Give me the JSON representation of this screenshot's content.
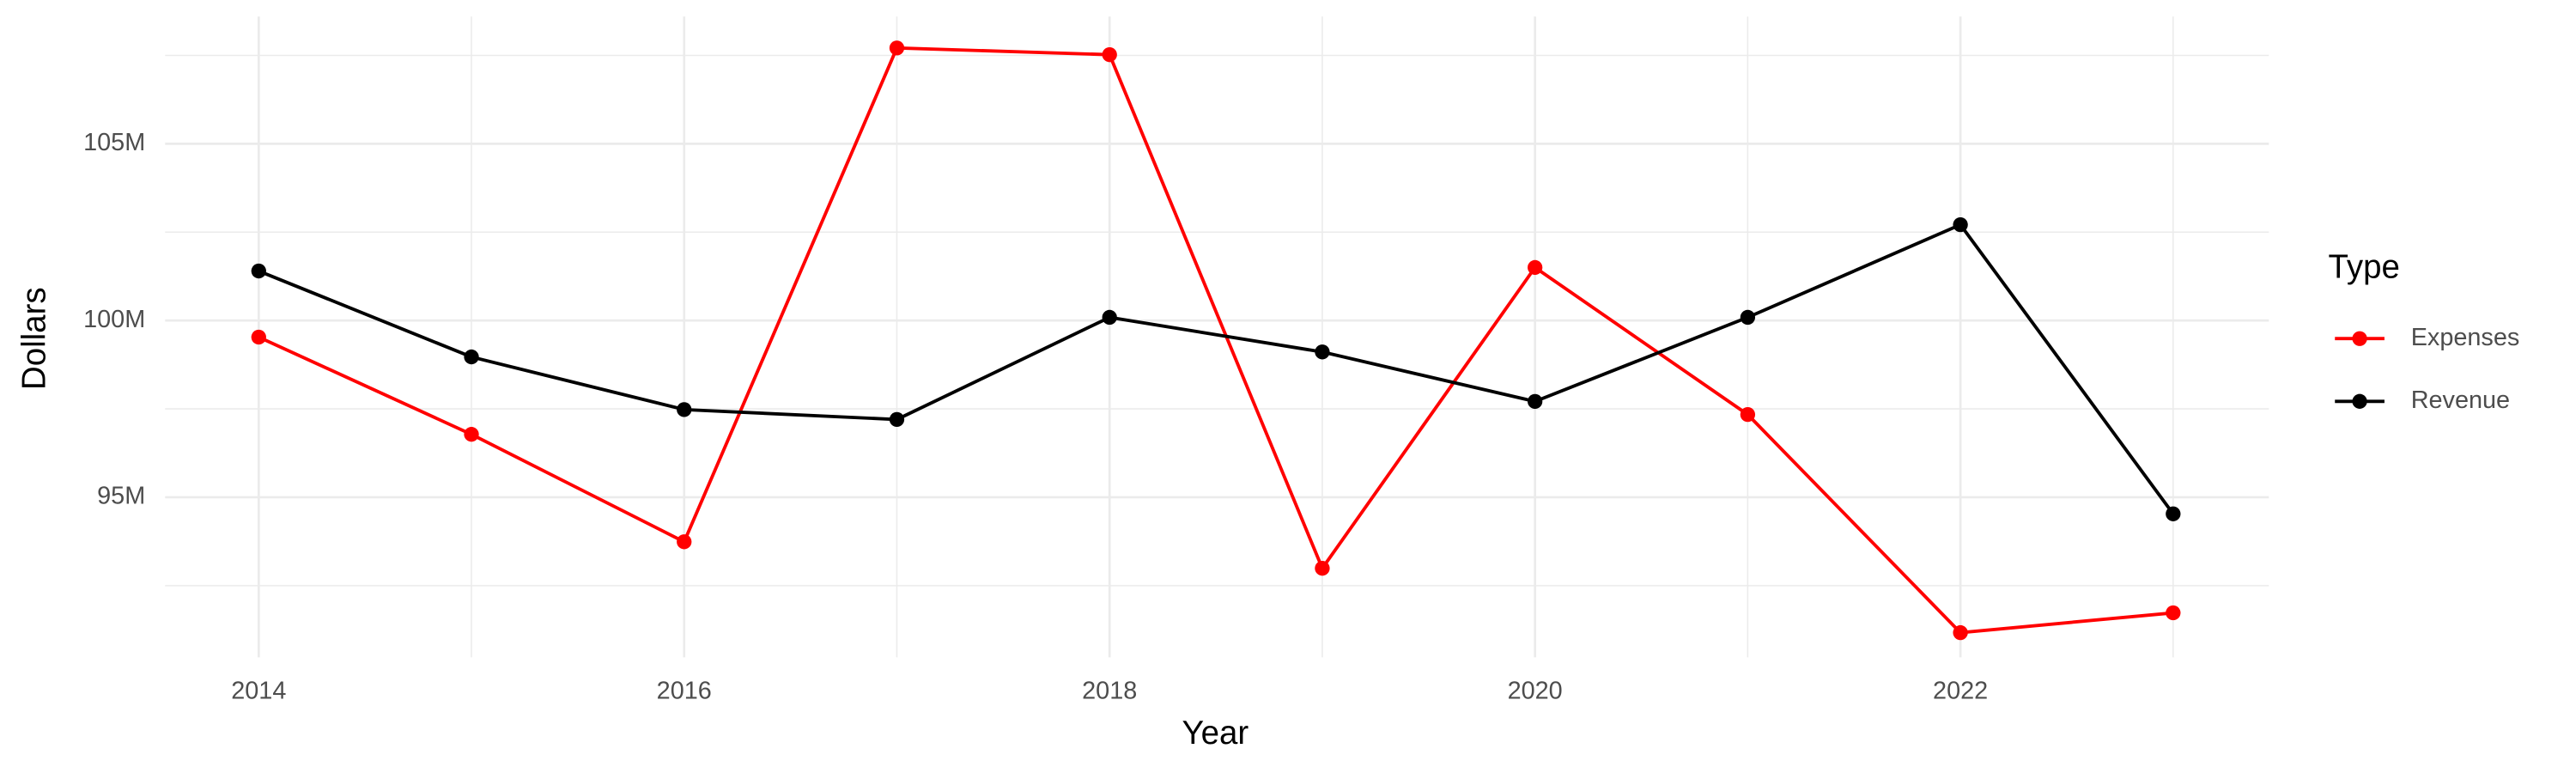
{
  "chart_data": {
    "type": "line",
    "x_label": "Year",
    "y_label": "Dollars",
    "legend_title": "Type",
    "x": [
      2014,
      2015,
      2016,
      2017,
      2018,
      2019,
      2020,
      2021,
      2022,
      2023
    ],
    "series": [
      {
        "name": "Expenses",
        "color": "#ff0000",
        "values": [
          99530000,
          96780000,
          93740000,
          107710000,
          107520000,
          92990000,
          101500000,
          97340000,
          91170000,
          91730000
        ]
      },
      {
        "name": "Revenue",
        "color": "#000000",
        "values": [
          101400000,
          98970000,
          97480000,
          97200000,
          100090000,
          99110000,
          97710000,
          100090000,
          102710000,
          94530000
        ]
      }
    ],
    "xlim": [
      2013.56,
      2023.45
    ],
    "xticks": [
      2014,
      2016,
      2018,
      2020,
      2022
    ],
    "xminor": [
      2015,
      2017,
      2019,
      2021,
      2023
    ],
    "ylim": [
      90470000,
      108600000
    ],
    "yticks": [
      {
        "value": 95000000,
        "label": "95M"
      },
      {
        "value": 100000000,
        "label": "100M"
      },
      {
        "value": 105000000,
        "label": "105M"
      }
    ],
    "yminor": [
      92500000,
      97500000,
      102500000,
      107500000
    ],
    "grid": true,
    "legend_position": "right"
  }
}
